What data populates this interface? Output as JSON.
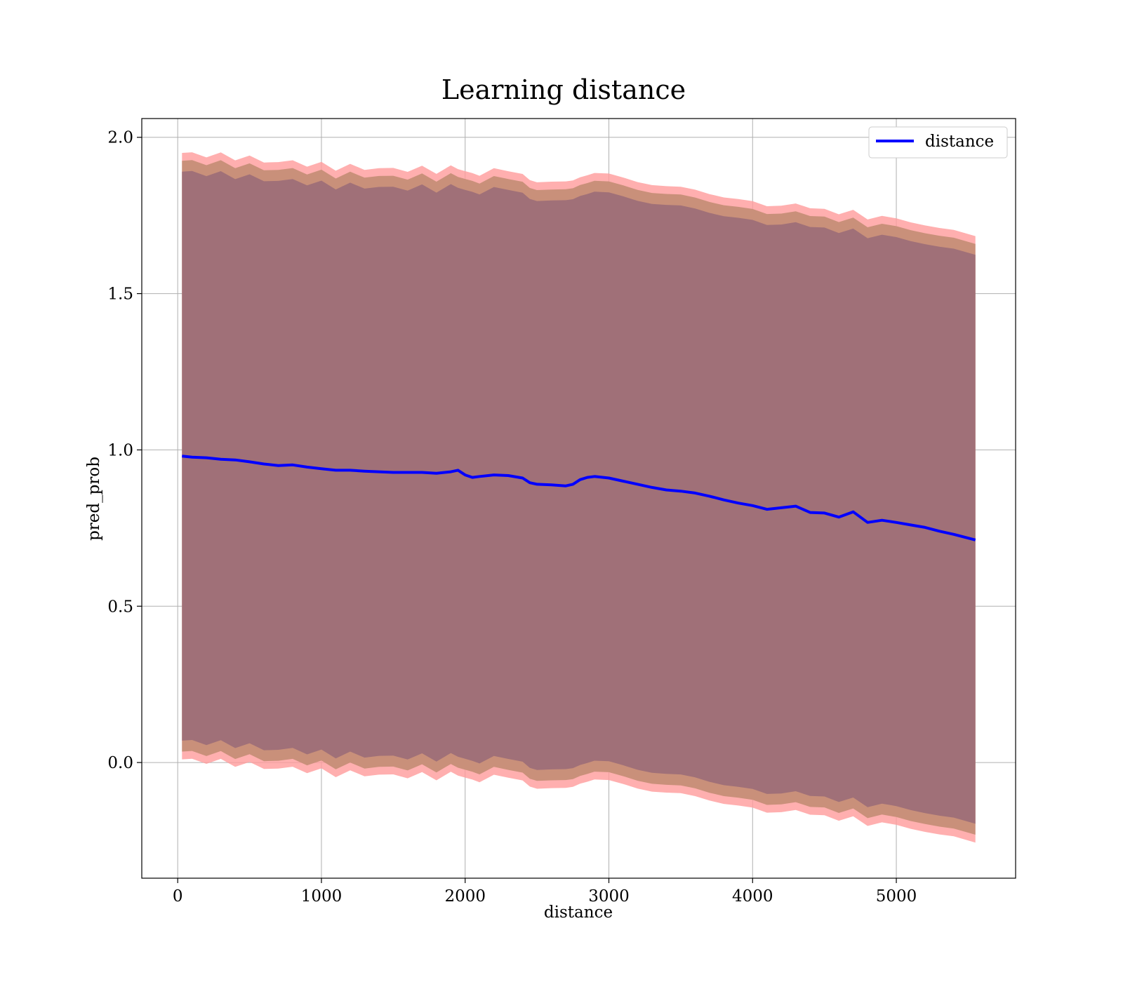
{
  "chart_data": {
    "type": "line",
    "title": "Learning distance",
    "xlabel": "distance",
    "ylabel": "pred_prob",
    "xlim": [
      -250,
      5830
    ],
    "ylim": [
      -0.37,
      2.06
    ],
    "xticks": [
      0,
      1000,
      2000,
      3000,
      4000,
      5000
    ],
    "yticks": [
      0.0,
      0.5,
      1.0,
      1.5,
      2.0
    ],
    "xtick_labels": [
      "0",
      "1000",
      "2000",
      "3000",
      "4000",
      "5000"
    ],
    "ytick_labels": [
      "0.0",
      "0.5",
      "1.0",
      "1.5",
      "2.0"
    ],
    "grid": true,
    "legend": {
      "position": "top-right",
      "entries": [
        "distance"
      ]
    },
    "x": [
      30,
      100,
      200,
      300,
      400,
      500,
      600,
      700,
      800,
      900,
      1000,
      1100,
      1200,
      1300,
      1400,
      1500,
      1600,
      1700,
      1800,
      1900,
      1950,
      2000,
      2050,
      2100,
      2200,
      2300,
      2400,
      2450,
      2500,
      2600,
      2700,
      2750,
      2800,
      2850,
      2900,
      3000,
      3100,
      3200,
      3300,
      3400,
      3500,
      3600,
      3700,
      3800,
      3900,
      4000,
      4100,
      4200,
      4300,
      4400,
      4500,
      4600,
      4700,
      4800,
      4900,
      5000,
      5100,
      5200,
      5300,
      5400,
      5550
    ],
    "series": [
      {
        "name": "distance",
        "color": "#0000ff",
        "values": [
          0.98,
          0.977,
          0.975,
          0.97,
          0.968,
          0.962,
          0.955,
          0.95,
          0.952,
          0.945,
          0.94,
          0.935,
          0.935,
          0.932,
          0.93,
          0.928,
          0.928,
          0.928,
          0.925,
          0.93,
          0.935,
          0.92,
          0.912,
          0.915,
          0.92,
          0.918,
          0.91,
          0.895,
          0.89,
          0.888,
          0.885,
          0.89,
          0.905,
          0.912,
          0.915,
          0.91,
          0.9,
          0.89,
          0.88,
          0.872,
          0.868,
          0.862,
          0.852,
          0.84,
          0.83,
          0.822,
          0.81,
          0.815,
          0.82,
          0.8,
          0.798,
          0.785,
          0.802,
          0.768,
          0.775,
          0.768,
          0.76,
          0.752,
          0.74,
          0.73,
          0.712
        ],
        "band_outer_halfwidth": 0.97,
        "band_middle_halfwidth": 0.945,
        "band_inner_halfwidth": 0.91
      }
    ],
    "band_colors": {
      "outer": "#ff9b9b",
      "middle": "#c9907a",
      "inner": "#a07078"
    }
  }
}
